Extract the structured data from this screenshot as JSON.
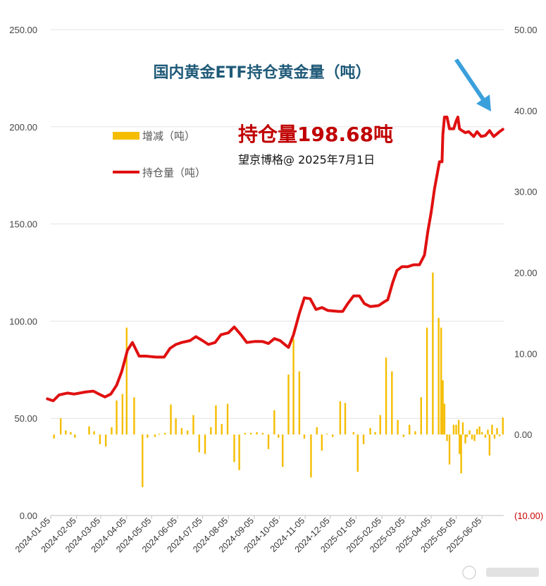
{
  "chart_data": {
    "type": "bar+line",
    "title": "国内黄金ETF持仓黄金量（吨）",
    "annotation": {
      "headline": "持仓量198.68吨",
      "byline": "望京博格@ 2025年7月1日",
      "arrow_color": "#3aa0dc"
    },
    "left_axis": {
      "ylim": [
        0,
        250
      ],
      "ticks": [
        "0.00",
        "50.00",
        "100.00",
        "150.00",
        "200.00",
        "250.00"
      ]
    },
    "right_axis": {
      "ylim": [
        -10,
        50
      ],
      "ticks": [
        "(10.00)",
        "0.00",
        "10.00",
        "20.00",
        "30.00",
        "40.00",
        "50.00"
      ]
    },
    "x_tick_labels": [
      "2024-01-05",
      "2024-02-05",
      "2024-03-05",
      "2024-04-05",
      "2024-05-05",
      "2024-06-05",
      "2024-07-05",
      "2024-08-05",
      "2024-09-05",
      "2024-10-05",
      "2024-11-05",
      "2024-12-05",
      "2025-01-05",
      "2025-02-05",
      "2025-03-05",
      "2025-04-05",
      "2025-05-05",
      "2025-06-05"
    ],
    "legend": [
      {
        "name": "增减（吨）",
        "kind": "bar",
        "color": "#f5bd00"
      },
      {
        "name": "持仓量（吨）",
        "kind": "line",
        "color": "#e01010"
      }
    ],
    "holdings_line": {
      "name": "持仓量（吨）",
      "axis": "left",
      "color": "#e01010",
      "points": [
        [
          "2024-01-01",
          60
        ],
        [
          "2024-01-08",
          59
        ],
        [
          "2024-01-15",
          62
        ],
        [
          "2024-01-25",
          63
        ],
        [
          "2024-02-02",
          62.5
        ],
        [
          "2024-02-15",
          63.5
        ],
        [
          "2024-02-25",
          64
        ],
        [
          "2024-03-05",
          62
        ],
        [
          "2024-03-10",
          61
        ],
        [
          "2024-03-17",
          62.5
        ],
        [
          "2024-03-24",
          67
        ],
        [
          "2024-03-30",
          74
        ],
        [
          "2024-04-06",
          85
        ],
        [
          "2024-04-12",
          89
        ],
        [
          "2024-04-20",
          82
        ],
        [
          "2024-04-28",
          82
        ],
        [
          "2024-05-10",
          81.5
        ],
        [
          "2024-05-20",
          81.5
        ],
        [
          "2024-05-27",
          86
        ],
        [
          "2024-06-03",
          88
        ],
        [
          "2024-06-10",
          89
        ],
        [
          "2024-06-20",
          90
        ],
        [
          "2024-06-27",
          92
        ],
        [
          "2024-07-05",
          90
        ],
        [
          "2024-07-12",
          88
        ],
        [
          "2024-07-20",
          89
        ],
        [
          "2024-07-27",
          93
        ],
        [
          "2024-08-05",
          94
        ],
        [
          "2024-08-12",
          97
        ],
        [
          "2024-08-20",
          93
        ],
        [
          "2024-08-27",
          89
        ],
        [
          "2024-09-05",
          89.5
        ],
        [
          "2024-09-15",
          89.5
        ],
        [
          "2024-09-22",
          88.5
        ],
        [
          "2024-09-29",
          91
        ],
        [
          "2024-10-06",
          90
        ],
        [
          "2024-10-13",
          87.5
        ],
        [
          "2024-10-16",
          86.5
        ],
        [
          "2024-10-22",
          93
        ],
        [
          "2024-10-29",
          104
        ],
        [
          "2024-11-04",
          112
        ],
        [
          "2024-11-11",
          111.5
        ],
        [
          "2024-11-18",
          106
        ],
        [
          "2024-11-25",
          107
        ],
        [
          "2024-12-02",
          105.5
        ],
        [
          "2024-12-15",
          105
        ],
        [
          "2024-12-20",
          105
        ],
        [
          "2024-12-26",
          109
        ],
        [
          "2025-01-02",
          113
        ],
        [
          "2025-01-09",
          113
        ],
        [
          "2025-01-15",
          109
        ],
        [
          "2025-01-22",
          107.5
        ],
        [
          "2025-02-01",
          108
        ],
        [
          "2025-02-08",
          110
        ],
        [
          "2025-02-12",
          111
        ],
        [
          "2025-02-18",
          120
        ],
        [
          "2025-02-23",
          126
        ],
        [
          "2025-03-01",
          128
        ],
        [
          "2025-03-08",
          128
        ],
        [
          "2025-03-15",
          129
        ],
        [
          "2025-03-22",
          129
        ],
        [
          "2025-03-28",
          134
        ],
        [
          "2025-04-01",
          146
        ],
        [
          "2025-04-05",
          156
        ],
        [
          "2025-04-09",
          168
        ],
        [
          "2025-04-15",
          182
        ],
        [
          "2025-04-18",
          182
        ],
        [
          "2025-04-19",
          196
        ],
        [
          "2025-04-21",
          205
        ],
        [
          "2025-04-24",
          205
        ],
        [
          "2025-04-27",
          199
        ],
        [
          "2025-05-02",
          199
        ],
        [
          "2025-05-05",
          203
        ],
        [
          "2025-05-07",
          205
        ],
        [
          "2025-05-09",
          199
        ],
        [
          "2025-05-12",
          198
        ],
        [
          "2025-05-16",
          197
        ],
        [
          "2025-05-20",
          197.5
        ],
        [
          "2025-05-26",
          195
        ],
        [
          "2025-05-30",
          197.5
        ],
        [
          "2025-06-04",
          195
        ],
        [
          "2025-06-09",
          195.5
        ],
        [
          "2025-06-14",
          198
        ],
        [
          "2025-06-19",
          195
        ],
        [
          "2025-06-22",
          196
        ],
        [
          "2025-06-26",
          197.5
        ],
        [
          "2025-06-30",
          198.68
        ]
      ]
    },
    "change_bars": {
      "name": "增减（吨）",
      "axis": "right",
      "color": "#f5bd00",
      "points": [
        [
          "2024-01-09",
          -0.5
        ],
        [
          "2024-01-17",
          2
        ],
        [
          "2024-01-23",
          0.5
        ],
        [
          "2024-01-29",
          0.3
        ],
        [
          "2024-02-03",
          -0.4
        ],
        [
          "2024-02-20",
          1
        ],
        [
          "2024-02-26",
          0.4
        ],
        [
          "2024-03-04",
          -1.2
        ],
        [
          "2024-03-11",
          -1.5
        ],
        [
          "2024-03-18",
          0.9
        ],
        [
          "2024-03-24",
          4.2
        ],
        [
          "2024-03-31",
          5
        ],
        [
          "2024-04-05",
          13.2
        ],
        [
          "2024-04-14",
          4.6
        ],
        [
          "2024-04-24",
          -6.5
        ],
        [
          "2024-04-30",
          -0.4
        ],
        [
          "2024-05-09",
          -0.3
        ],
        [
          "2024-05-14",
          0.1
        ],
        [
          "2024-05-21",
          0.2
        ],
        [
          "2024-05-28",
          3.7
        ],
        [
          "2024-06-03",
          2
        ],
        [
          "2024-06-10",
          0.8
        ],
        [
          "2024-06-17",
          0.5
        ],
        [
          "2024-06-24",
          2.4
        ],
        [
          "2024-07-01",
          -2.2
        ],
        [
          "2024-07-08",
          -2.4
        ],
        [
          "2024-07-15",
          0.9
        ],
        [
          "2024-07-21",
          3.6
        ],
        [
          "2024-07-28",
          1.3
        ],
        [
          "2024-08-04",
          3.8
        ],
        [
          "2024-08-12",
          -3.4
        ],
        [
          "2024-08-18",
          -4.4
        ],
        [
          "2024-08-25",
          0.2
        ],
        [
          "2024-09-01",
          0.2
        ],
        [
          "2024-09-08",
          0.3
        ],
        [
          "2024-09-15",
          0.2
        ],
        [
          "2024-09-22",
          -1.8
        ],
        [
          "2024-09-29",
          3
        ],
        [
          "2024-10-04",
          -0.4
        ],
        [
          "2024-10-09",
          -4
        ],
        [
          "2024-10-16",
          7.4
        ],
        [
          "2024-10-22",
          11.8
        ],
        [
          "2024-10-29",
          7.8
        ],
        [
          "2024-11-04",
          -0.5
        ],
        [
          "2024-11-12",
          -5.3
        ],
        [
          "2024-11-19",
          0.9
        ],
        [
          "2024-11-25",
          -2
        ],
        [
          "2024-12-01",
          0.1
        ],
        [
          "2024-12-08",
          -0.3
        ],
        [
          "2024-12-17",
          4.1
        ],
        [
          "2024-12-23",
          3.9
        ],
        [
          "2025-01-02",
          0.3
        ],
        [
          "2025-01-07",
          -4.6
        ],
        [
          "2025-01-14",
          -1.2
        ],
        [
          "2025-01-22",
          0.8
        ],
        [
          "2025-01-28",
          0.3
        ],
        [
          "2025-02-03",
          2.4
        ],
        [
          "2025-02-10",
          9.5
        ],
        [
          "2025-02-17",
          7.8
        ],
        [
          "2025-02-24",
          1.8
        ],
        [
          "2025-03-03",
          -0.3
        ],
        [
          "2025-03-10",
          1.2
        ],
        [
          "2025-03-17",
          0.4
        ],
        [
          "2025-03-24",
          4.6
        ],
        [
          "2025-03-31",
          13.2
        ],
        [
          "2025-04-07",
          20
        ],
        [
          "2025-04-14",
          14.4
        ],
        [
          "2025-04-17",
          13.2
        ],
        [
          "2025-04-19",
          6.7
        ],
        [
          "2025-04-21",
          3.8
        ],
        [
          "2025-04-24",
          -0.8
        ],
        [
          "2025-04-27",
          -3.7
        ],
        [
          "2025-05-02",
          1.2
        ],
        [
          "2025-05-05",
          1.2
        ],
        [
          "2025-05-08",
          1.8
        ],
        [
          "2025-05-09",
          -2.4
        ],
        [
          "2025-05-11",
          -4.8
        ],
        [
          "2025-05-13",
          1.5
        ],
        [
          "2025-05-16",
          -1.1
        ],
        [
          "2025-05-18",
          -0.3
        ],
        [
          "2025-05-21",
          0.5
        ],
        [
          "2025-05-24",
          -0.6
        ],
        [
          "2025-05-27",
          -0.8
        ],
        [
          "2025-05-30",
          0.7
        ],
        [
          "2025-06-02",
          1
        ],
        [
          "2025-06-05",
          0.3
        ],
        [
          "2025-06-09",
          -0.4
        ],
        [
          "2025-06-12",
          0.6
        ],
        [
          "2025-06-14",
          -2.6
        ],
        [
          "2025-06-17",
          1.2
        ],
        [
          "2025-06-20",
          -0.5
        ],
        [
          "2025-06-23",
          0.8
        ],
        [
          "2025-06-26",
          -0.2
        ],
        [
          "2025-06-30",
          2.1
        ]
      ]
    }
  }
}
